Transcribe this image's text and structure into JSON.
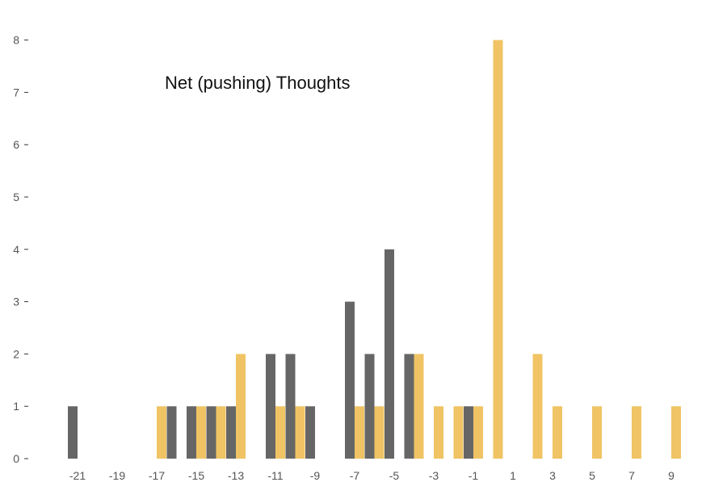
{
  "chart_data": {
    "type": "bar",
    "title": "Net (pushing) Thoughts",
    "xlabel": "",
    "ylabel": "",
    "ylim": [
      0,
      8
    ],
    "xlim": [
      -22,
      10
    ],
    "grid": false,
    "x_ticks": [
      -21,
      -19,
      -17,
      -15,
      -13,
      -11,
      -9,
      -7,
      -5,
      -3,
      -1,
      1,
      3,
      5,
      7,
      9
    ],
    "y_ticks": [
      0,
      1,
      2,
      3,
      4,
      5,
      6,
      7,
      8
    ],
    "colors": {
      "gray": "#666666",
      "gold": "#f0c464"
    },
    "series": [
      {
        "color": "#666666",
        "x": [
          -21,
          -20,
          -19,
          -18,
          -17,
          -16,
          -15,
          -14,
          -13,
          -12,
          -11,
          -10,
          -9,
          -8,
          -7,
          -6,
          -5,
          -4,
          -3,
          -2,
          -1,
          0,
          1,
          2,
          3,
          4,
          5,
          6,
          7,
          8,
          9
        ],
        "values": [
          1,
          0,
          0,
          0,
          0,
          1,
          1,
          1,
          1,
          0,
          2,
          2,
          1,
          0,
          3,
          2,
          4,
          2,
          0,
          0,
          1,
          0,
          0,
          0,
          0,
          0,
          0,
          0,
          0,
          0,
          0
        ]
      },
      {
        "color": "#f0c464",
        "x": [
          -21,
          -20,
          -19,
          -18,
          -17,
          -16,
          -15,
          -14,
          -13,
          -12,
          -11,
          -10,
          -9,
          -8,
          -7,
          -6,
          -5,
          -4,
          -3,
          -2,
          -1,
          0,
          1,
          2,
          3,
          4,
          5,
          6,
          7,
          8,
          9
        ],
        "values": [
          0,
          0,
          0,
          0,
          1,
          0,
          1,
          1,
          2,
          0,
          1,
          1,
          0,
          0,
          1,
          1,
          0,
          2,
          1,
          1,
          1,
          8,
          0,
          2,
          1,
          0,
          1,
          0,
          1,
          0,
          1
        ]
      }
    ]
  }
}
